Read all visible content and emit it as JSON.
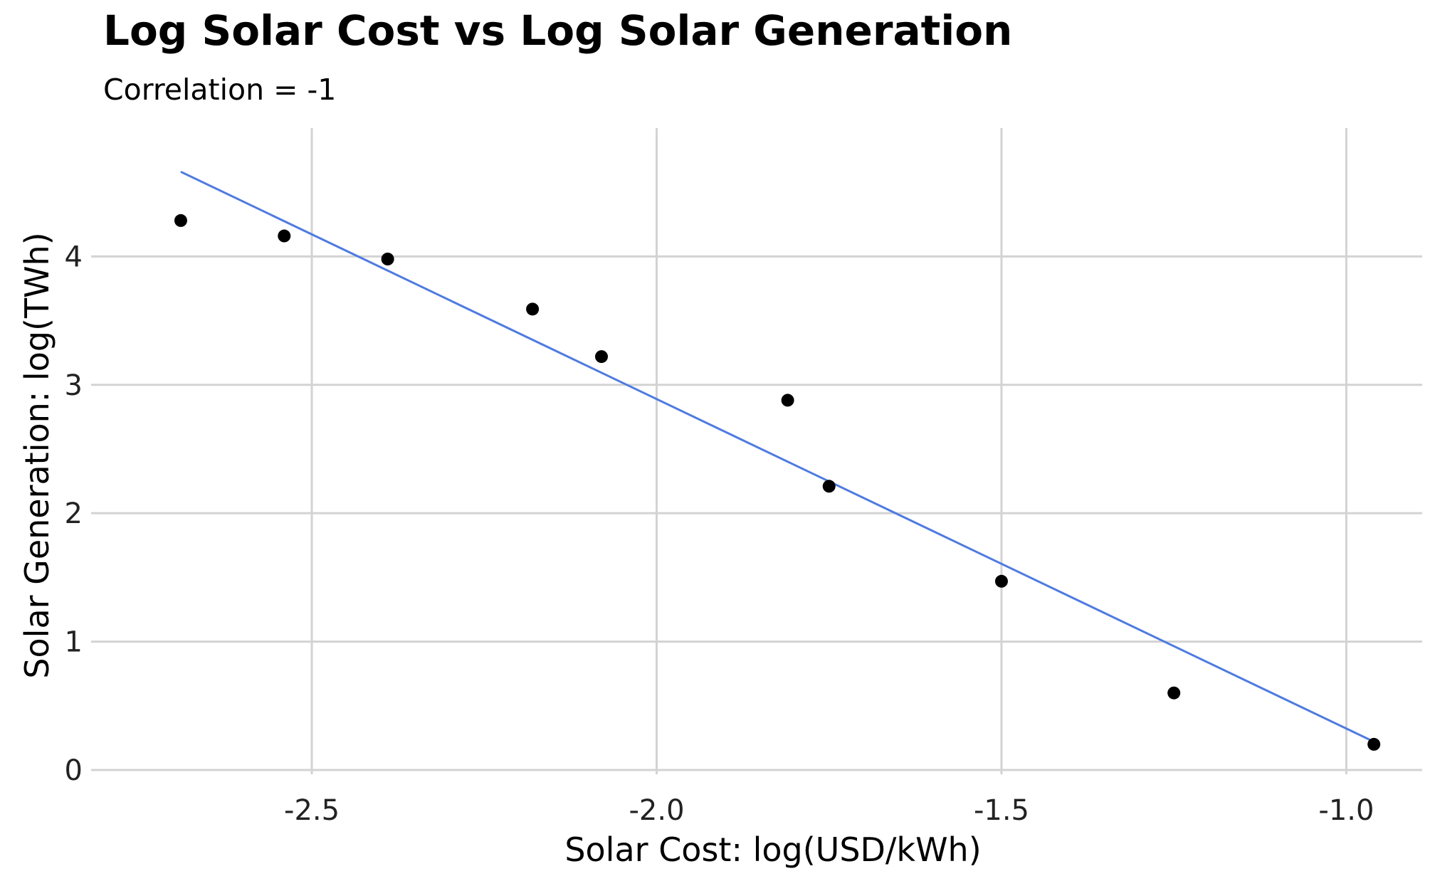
{
  "chart_data": {
    "type": "scatter",
    "title": "Log Solar Cost vs Log Solar Generation",
    "subtitle": "Correlation = -1",
    "xlabel": "Solar Cost: log(USD/kWh)",
    "ylabel": "Solar Generation: log(TWh)",
    "xlim": [
      -2.82,
      -0.89
    ],
    "ylim": [
      -0.1,
      5.0
    ],
    "x_ticks": [
      -2.5,
      -2.0,
      -1.5,
      -1.0
    ],
    "x_tick_labels": [
      "-2.5",
      "-2.0",
      "-1.5",
      "-1.0"
    ],
    "y_ticks": [
      0,
      1,
      2,
      3,
      4
    ],
    "y_tick_labels": [
      "0",
      "1",
      "2",
      "3",
      "4"
    ],
    "grid": true,
    "points": [
      {
        "x": -2.69,
        "y": 4.28
      },
      {
        "x": -2.54,
        "y": 4.16
      },
      {
        "x": -2.39,
        "y": 3.98
      },
      {
        "x": -2.18,
        "y": 3.59
      },
      {
        "x": -2.08,
        "y": 3.22
      },
      {
        "x": -1.81,
        "y": 2.88
      },
      {
        "x": -1.75,
        "y": 2.21
      },
      {
        "x": -1.5,
        "y": 1.47
      },
      {
        "x": -1.25,
        "y": 0.6
      },
      {
        "x": -0.96,
        "y": 0.2
      }
    ],
    "fit_line": {
      "x": [
        -2.69,
        -0.96
      ],
      "y": [
        4.66,
        0.22
      ]
    },
    "colors": {
      "points": "#000000",
      "fit_line": "#4F7BE0",
      "grid": "#D3D3D3"
    }
  }
}
